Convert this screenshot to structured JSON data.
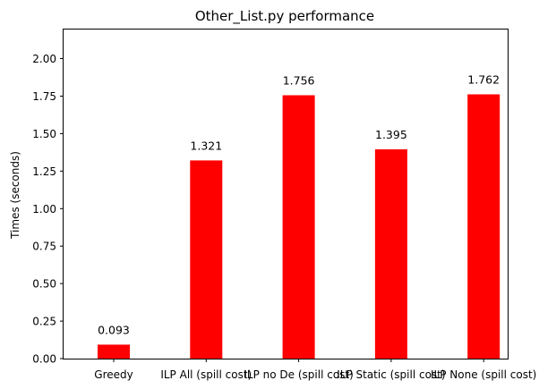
{
  "chart_data": {
    "type": "bar",
    "title": "Other_List.py performance",
    "xlabel": "",
    "ylabel": "Times (seconds)",
    "categories": [
      "Greedy",
      "ILP All (spill cost)",
      "ILP no De (spill cost)",
      "ILP Static (spill cost)",
      "ILP None (spill cost)"
    ],
    "values": [
      0.093,
      1.321,
      1.756,
      1.395,
      1.762
    ],
    "data_labels": [
      "0.093",
      "1.321",
      "1.756",
      "1.395",
      "1.762"
    ],
    "ylim": [
      0,
      2.2
    ],
    "yticks": [
      0.0,
      0.25,
      0.5,
      0.75,
      1.0,
      1.25,
      1.5,
      1.75,
      2.0
    ],
    "ytick_labels": [
      "0.00",
      "0.25",
      "0.50",
      "0.75",
      "1.00",
      "1.25",
      "1.50",
      "1.75",
      "2.00"
    ],
    "bar_color": "#ff0000",
    "grid": false,
    "legend": "none"
  }
}
